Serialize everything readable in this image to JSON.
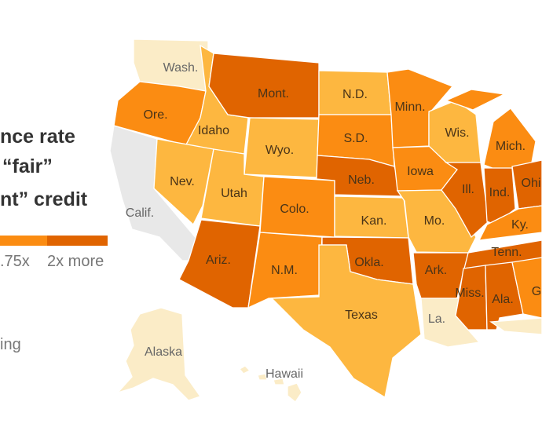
{
  "title_lines": [
    "nce rate",
    "“fair”",
    "nt” credit"
  ],
  "legend": {
    "labels": [
      ".75x",
      "2x more"
    ],
    "colors": {
      "1.75x": "#fb8c12",
      "2x": "#e06400"
    },
    "no_data_label": "ing"
  },
  "colors": {
    "lightest": "#fbecc7",
    "light": "#fdb740",
    "mid": "#fb8c12",
    "dark": "#e06400",
    "none": "#e8e8e8"
  },
  "states": [
    {
      "key": "wa",
      "label": "Wash.",
      "level": "lightest"
    },
    {
      "key": "or",
      "label": "Ore.",
      "level": "mid"
    },
    {
      "key": "ca",
      "label": "Calif.",
      "level": "none"
    },
    {
      "key": "id",
      "label": "Idaho",
      "level": "light"
    },
    {
      "key": "nv",
      "label": "Nev.",
      "level": "light"
    },
    {
      "key": "mt",
      "label": "Mont.",
      "level": "dark"
    },
    {
      "key": "wy",
      "label": "Wyo.",
      "level": "light"
    },
    {
      "key": "ut",
      "label": "Utah",
      "level": "light"
    },
    {
      "key": "az",
      "label": "Ariz.",
      "level": "dark"
    },
    {
      "key": "co",
      "label": "Colo.",
      "level": "mid"
    },
    {
      "key": "nm",
      "label": "N.M.",
      "level": "mid"
    },
    {
      "key": "nd",
      "label": "N.D.",
      "level": "light"
    },
    {
      "key": "sd",
      "label": "S.D.",
      "level": "mid"
    },
    {
      "key": "ne",
      "label": "Neb.",
      "level": "dark"
    },
    {
      "key": "ks",
      "label": "Kan.",
      "level": "light"
    },
    {
      "key": "ok",
      "label": "Okla.",
      "level": "dark"
    },
    {
      "key": "tx",
      "label": "Texas",
      "level": "light"
    },
    {
      "key": "mn",
      "label": "Minn.",
      "level": "mid"
    },
    {
      "key": "ia",
      "label": "Iowa",
      "level": "mid"
    },
    {
      "key": "mo",
      "label": "Mo.",
      "level": "light"
    },
    {
      "key": "wi",
      "label": "Wis.",
      "level": "light"
    },
    {
      "key": "il",
      "label": "Ill.",
      "level": "dark"
    },
    {
      "key": "mi",
      "label": "Mich.",
      "level": "mid"
    },
    {
      "key": "in",
      "label": "Ind.",
      "level": "dark"
    },
    {
      "key": "oh",
      "label": "Ohi",
      "level": "dark"
    },
    {
      "key": "ky",
      "label": "Ky.",
      "level": "mid"
    },
    {
      "key": "tn",
      "label": "Tenn.",
      "level": "dark"
    },
    {
      "key": "ar",
      "label": "Ark.",
      "level": "dark"
    },
    {
      "key": "la",
      "label": "La.",
      "level": "lightest"
    },
    {
      "key": "ms",
      "label": "Miss.",
      "level": "dark"
    },
    {
      "key": "al",
      "label": "Ala.",
      "level": "dark"
    },
    {
      "key": "ga",
      "label": "G",
      "level": "mid"
    },
    {
      "key": "fl",
      "label": "",
      "level": "lightest"
    },
    {
      "key": "mi_up",
      "label": "",
      "level": "mid"
    },
    {
      "key": "ak",
      "label": "Alaska",
      "level": "lightest"
    },
    {
      "key": "hi",
      "label": "Hawaii",
      "level": "lightest"
    }
  ]
}
